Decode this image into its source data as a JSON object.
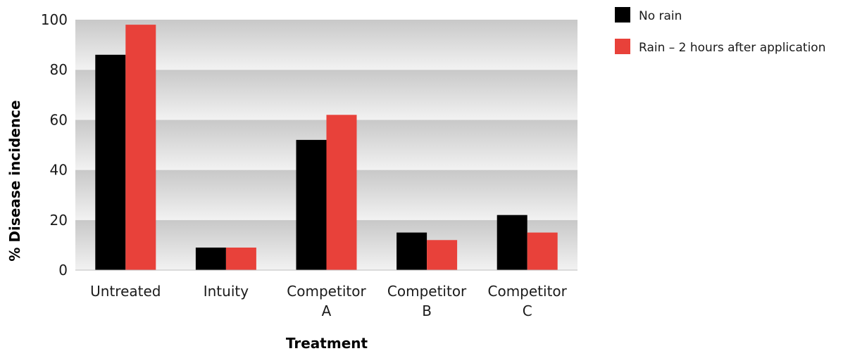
{
  "chart_data": {
    "type": "bar",
    "title": "",
    "xlabel": "Treatment",
    "ylabel": "% Disease incidence",
    "ylim": [
      0,
      100
    ],
    "yticks": [
      "0",
      "20",
      "40",
      "60",
      "80",
      "100"
    ],
    "categories": [
      [
        "Untreated"
      ],
      [
        "Intuity"
      ],
      [
        "Competitor",
        "A"
      ],
      [
        "Competitor",
        "B"
      ],
      [
        "Competitor",
        "C"
      ]
    ],
    "series": [
      {
        "name": "No rain",
        "color": "#000000",
        "values": [
          86,
          9,
          52,
          15,
          22
        ]
      },
      {
        "name": "Rain – 2 hours after application",
        "color": "#e8413a",
        "values": [
          98,
          9,
          62,
          12,
          15
        ]
      }
    ],
    "legend_position": "top-right",
    "grid": "alternating horizontal bands"
  }
}
